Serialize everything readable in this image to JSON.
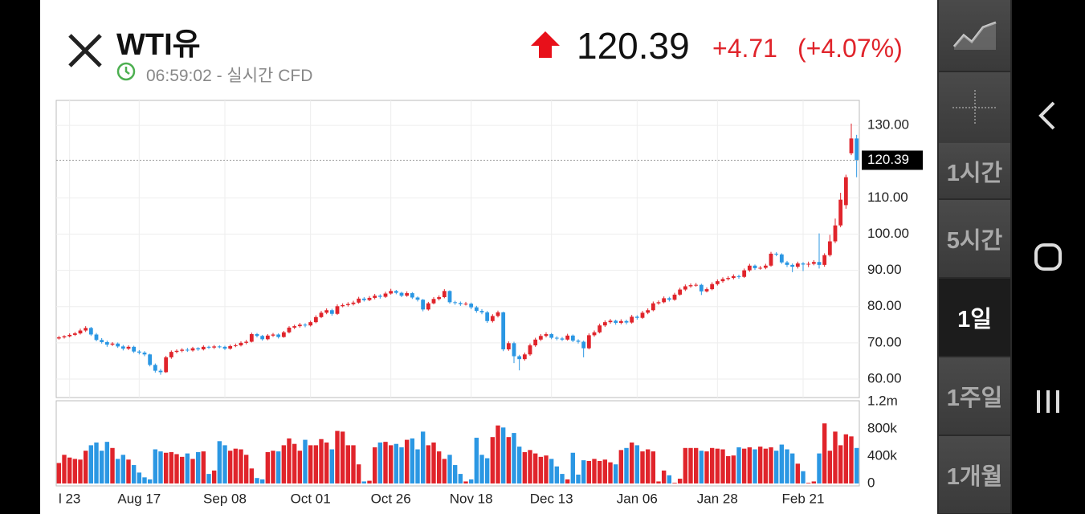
{
  "quote": {
    "name": "WTI유",
    "time": "06:59:02 - 실시간 CFD",
    "price": 120.39,
    "change": "+4.71",
    "change_pct": "(+4.07%)"
  },
  "intervals": [
    "1시간",
    "5시간",
    "1일",
    "1주일",
    "1개월"
  ],
  "selected_interval": 2,
  "chart_data": [
    {
      "type": "candlestick",
      "up_color": "#e0242b",
      "down_color": "#2b97e3",
      "grid": true,
      "ylim": [
        54.9,
        136.9
      ],
      "yticks": [
        {
          "value": 60,
          "label": "60.00"
        },
        {
          "value": 70,
          "label": "70.00"
        },
        {
          "value": 80,
          "label": "80.00"
        },
        {
          "value": 90,
          "label": "90.00"
        },
        {
          "value": 100,
          "label": "100.00"
        },
        {
          "value": 110,
          "label": "110.00"
        },
        {
          "value": 130,
          "label": "130.00"
        }
      ],
      "open": [
        71.2,
        71.5,
        71.8,
        72.2,
        72.6,
        73.4,
        74.1,
        72.3,
        70.8,
        70.2,
        69.5,
        69.8,
        69.0,
        68.4,
        68.9,
        67.6,
        67.3,
        66.8,
        63.9,
        62.3,
        61.9,
        66.0,
        67.5,
        67.8,
        68.1,
        67.9,
        68.5,
        68.2,
        68.9,
        68.7,
        69.0,
        68.9,
        68.4,
        69.1,
        69.3,
        70.0,
        70.3,
        72.4,
        71.9,
        71.0,
        72.0,
        72.3,
        71.6,
        72.9,
        74.2,
        74.6,
        75.0,
        74.8,
        75.7,
        77.1,
        78.3,
        79.0,
        78.0,
        80.1,
        80.4,
        80.7,
        81.1,
        82.2,
        81.8,
        82.4,
        83.0,
        82.7,
        83.6,
        84.3,
        83.8,
        83.0,
        83.7,
        82.5,
        81.9,
        79.2,
        80.9,
        82.1,
        82.6,
        84.3,
        81.2,
        81.0,
        80.7,
        80.8,
        79.8,
        78.8,
        78.4,
        76.0,
        77.4,
        78.4,
        68.2,
        69.9,
        66.3,
        65.5,
        66.8,
        69.3,
        70.9,
        71.9,
        72.4,
        71.4,
        71.2,
        70.9,
        72.0,
        70.6,
        70.3,
        68.5,
        72.1,
        72.9,
        74.8,
        75.7,
        76.1,
        75.5,
        76.0,
        75.6,
        77.2,
        76.9,
        78.3,
        79.0,
        80.9,
        81.2,
        82.3,
        81.9,
        83.3,
        84.7,
        85.6,
        85.9,
        86.0,
        84.2,
        84.8,
        86.2,
        87.0,
        87.6,
        87.9,
        88.4,
        88.2,
        90.0,
        91.3,
        90.6,
        90.7,
        91.3,
        94.6,
        94.4,
        92.2,
        91.5,
        91.0,
        91.9,
        91.6,
        91.8,
        92.3,
        91.5,
        94.2,
        98.0,
        102.4,
        108.0,
        122.3,
        126.4
      ],
      "high": [
        71.9,
        72.1,
        72.6,
        73.0,
        73.9,
        74.6,
        74.4,
        72.7,
        71.3,
        70.6,
        70.2,
        70.1,
        69.4,
        69.3,
        69.2,
        68.0,
        67.7,
        67.0,
        64.3,
        62.8,
        66.4,
        67.9,
        68.2,
        68.5,
        68.6,
        68.9,
        68.8,
        69.3,
        69.2,
        69.4,
        69.3,
        69.2,
        69.5,
        69.8,
        70.4,
        70.8,
        72.8,
        72.7,
        72.2,
        72.4,
        72.7,
        72.6,
        73.3,
        74.6,
        75.0,
        75.5,
        75.4,
        76.1,
        77.6,
        78.8,
        79.5,
        79.4,
        80.6,
        80.9,
        81.2,
        81.6,
        82.7,
        82.6,
        82.9,
        83.5,
        83.4,
        84.1,
        84.9,
        84.6,
        84.1,
        84.2,
        84.0,
        82.8,
        82.1,
        81.3,
        82.6,
        83.1,
        84.8,
        84.5,
        81.6,
        81.4,
        81.3,
        81.1,
        80.2,
        79.3,
        78.8,
        77.9,
        78.9,
        78.6,
        70.4,
        70.3,
        66.7,
        67.3,
        69.8,
        71.4,
        72.4,
        72.9,
        72.7,
        71.8,
        71.6,
        72.5,
        72.3,
        71.0,
        70.6,
        72.6,
        73.4,
        75.3,
        76.2,
        76.6,
        76.4,
        76.5,
        76.4,
        77.7,
        77.6,
        78.8,
        79.5,
        81.4,
        81.7,
        82.8,
        82.7,
        83.8,
        85.2,
        86.1,
        86.4,
        86.5,
        86.3,
        85.3,
        86.7,
        87.5,
        88.1,
        88.4,
        88.9,
        88.8,
        90.5,
        91.8,
        91.6,
        91.2,
        91.8,
        95.1,
        95.0,
        94.7,
        92.6,
        91.9,
        92.4,
        92.3,
        92.4,
        92.8,
        100.2,
        94.7,
        99.8,
        104.3,
        111.4,
        116.4,
        130.5,
        127.4
      ],
      "low": [
        70.9,
        71.2,
        71.5,
        71.9,
        72.3,
        73.0,
        71.9,
        70.4,
        69.8,
        68.9,
        69.1,
        68.6,
        67.9,
        68.0,
        67.2,
        66.8,
        66.3,
        63.5,
        61.8,
        61.2,
        61.7,
        65.6,
        67.1,
        67.4,
        67.5,
        67.6,
        67.8,
        67.9,
        68.3,
        68.3,
        68.5,
        68.0,
        68.1,
        68.8,
        69.0,
        69.6,
        70.1,
        71.5,
        70.6,
        70.7,
        71.6,
        71.2,
        71.4,
        72.6,
        73.8,
        74.2,
        74.3,
        74.5,
        75.4,
        76.8,
        77.9,
        77.5,
        77.7,
        79.8,
        80.0,
        80.3,
        80.8,
        81.4,
        81.5,
        82.0,
        82.2,
        82.4,
        83.3,
        83.4,
        82.6,
        82.7,
        82.1,
        81.4,
        78.7,
        78.9,
        80.6,
        81.7,
        82.3,
        80.8,
        80.5,
        80.2,
        80.3,
        79.3,
        78.3,
        77.9,
        75.5,
        75.6,
        77.0,
        67.7,
        67.8,
        64.4,
        62.4,
        65.1,
        66.4,
        68.9,
        70.5,
        71.5,
        71.0,
        70.7,
        70.5,
        70.6,
        70.2,
        69.8,
        66.0,
        68.2,
        71.7,
        72.6,
        74.4,
        75.3,
        75.0,
        75.1,
        75.1,
        75.3,
        76.4,
        76.6,
        77.9,
        78.7,
        80.5,
        80.9,
        81.4,
        81.6,
        83.0,
        84.3,
        85.2,
        85.5,
        83.2,
        83.9,
        84.5,
        85.8,
        86.6,
        87.2,
        87.5,
        87.7,
        87.9,
        89.6,
        90.1,
        90.2,
        90.3,
        91.0,
        93.9,
        91.8,
        90.9,
        89.5,
        90.5,
        89.8,
        90.9,
        91.4,
        90.5,
        91.0,
        93.8,
        97.5,
        101.9,
        107.0,
        121.8,
        115.7
      ],
      "close": [
        71.5,
        71.8,
        72.2,
        72.6,
        73.4,
        74.1,
        72.3,
        70.8,
        70.2,
        69.5,
        69.8,
        69.0,
        68.4,
        68.9,
        67.6,
        67.3,
        66.8,
        63.9,
        62.3,
        61.9,
        66.0,
        67.5,
        67.8,
        68.1,
        67.9,
        68.5,
        68.2,
        68.9,
        68.7,
        69.0,
        68.9,
        68.4,
        69.1,
        69.3,
        70.0,
        70.3,
        72.4,
        71.9,
        71.0,
        72.0,
        72.3,
        71.6,
        72.9,
        74.2,
        74.6,
        75.0,
        74.8,
        75.7,
        77.1,
        78.3,
        79.0,
        78.0,
        80.1,
        80.4,
        80.7,
        81.1,
        82.2,
        81.8,
        82.4,
        83.0,
        82.7,
        83.6,
        84.3,
        83.8,
        83.0,
        83.7,
        82.5,
        81.9,
        79.2,
        80.9,
        82.1,
        82.6,
        84.3,
        81.2,
        81.0,
        80.7,
        80.8,
        79.8,
        78.8,
        78.4,
        76.0,
        77.4,
        78.4,
        68.2,
        69.9,
        66.3,
        65.5,
        66.8,
        69.3,
        70.9,
        71.9,
        72.4,
        71.4,
        71.2,
        70.9,
        72.0,
        70.6,
        70.3,
        68.5,
        72.1,
        72.9,
        74.8,
        75.7,
        76.1,
        75.5,
        76.0,
        75.6,
        77.2,
        76.9,
        78.3,
        79.0,
        80.9,
        81.2,
        82.3,
        81.9,
        83.3,
        84.7,
        85.6,
        85.9,
        86.0,
        84.2,
        84.8,
        86.2,
        87.0,
        87.6,
        87.9,
        88.4,
        88.2,
        90.0,
        91.3,
        90.6,
        90.7,
        91.3,
        94.6,
        94.4,
        92.2,
        91.5,
        91.0,
        91.9,
        91.6,
        91.8,
        92.3,
        91.5,
        94.2,
        98.0,
        102.4,
        109.5,
        115.7,
        126.4,
        120.39
      ]
    },
    {
      "type": "bar",
      "ylim": [
        0,
        1200000
      ],
      "yticks": [
        0,
        {
          "value": 400000,
          "label": "400k"
        },
        {
          "value": 800000,
          "label": "800k"
        },
        {
          "value": 1200000,
          "label": "1.2m"
        }
      ],
      "categories": [
        null,
        null,
        "l 23",
        null,
        null,
        null,
        null,
        null,
        null,
        null,
        null,
        null,
        null,
        null,
        null,
        "Aug 17",
        null,
        null,
        null,
        null,
        null,
        null,
        null,
        null,
        null,
        null,
        null,
        null,
        null,
        null,
        null,
        "Sep 08",
        null,
        null,
        null,
        null,
        null,
        null,
        null,
        null,
        null,
        null,
        null,
        null,
        null,
        null,
        null,
        "Oct 01",
        null,
        null,
        null,
        null,
        null,
        null,
        null,
        null,
        null,
        null,
        null,
        null,
        null,
        null,
        "Oct 26",
        null,
        null,
        null,
        null,
        null,
        null,
        null,
        null,
        null,
        null,
        null,
        null,
        null,
        null,
        "Nov 18",
        null,
        null,
        null,
        null,
        null,
        null,
        null,
        null,
        null,
        null,
        null,
        null,
        null,
        null,
        "Dec 13",
        null,
        null,
        null,
        null,
        null,
        null,
        null,
        null,
        null,
        null,
        null,
        null,
        null,
        null,
        null,
        "Jan 06",
        null,
        null,
        null,
        null,
        null,
        null,
        null,
        null,
        null,
        null,
        null,
        null,
        null,
        null,
        "Jan 28",
        null,
        null,
        null,
        null,
        null,
        null,
        null,
        null,
        null,
        null,
        null,
        null,
        null,
        null,
        null,
        "Feb 21",
        null,
        null,
        null,
        null,
        null,
        null,
        null,
        null,
        null,
        null
      ],
      "values": [
        300000,
        420000,
        380000,
        360000,
        350000,
        480000,
        560000,
        600000,
        480000,
        610000,
        520000,
        360000,
        420000,
        350000,
        270000,
        160000,
        90000,
        60000,
        500000,
        470000,
        450000,
        460000,
        430000,
        390000,
        440000,
        360000,
        460000,
        470000,
        140000,
        190000,
        620000,
        560000,
        480000,
        510000,
        500000,
        420000,
        220000,
        80000,
        60000,
        460000,
        480000,
        470000,
        560000,
        660000,
        580000,
        480000,
        640000,
        560000,
        560000,
        650000,
        600000,
        500000,
        770000,
        760000,
        560000,
        560000,
        280000,
        30000,
        40000,
        530000,
        600000,
        610000,
        560000,
        580000,
        530000,
        640000,
        660000,
        500000,
        760000,
        560000,
        600000,
        470000,
        360000,
        420000,
        270000,
        140000,
        30000,
        60000,
        670000,
        420000,
        370000,
        680000,
        850000,
        820000,
        680000,
        740000,
        540000,
        460000,
        490000,
        440000,
        390000,
        410000,
        360000,
        250000,
        140000,
        60000,
        450000,
        130000,
        340000,
        330000,
        360000,
        330000,
        350000,
        310000,
        280000,
        490000,
        520000,
        600000,
        560000,
        470000,
        500000,
        470000,
        30000,
        190000,
        120000,
        10000,
        70000,
        520000,
        520000,
        520000,
        480000,
        470000,
        520000,
        510000,
        500000,
        400000,
        410000,
        530000,
        510000,
        530000,
        500000,
        540000,
        510000,
        530000,
        480000,
        570000,
        500000,
        440000,
        290000,
        180000,
        10000,
        30000,
        440000,
        880000,
        480000,
        760000,
        560000,
        720000,
        690000,
        520000
      ]
    }
  ]
}
